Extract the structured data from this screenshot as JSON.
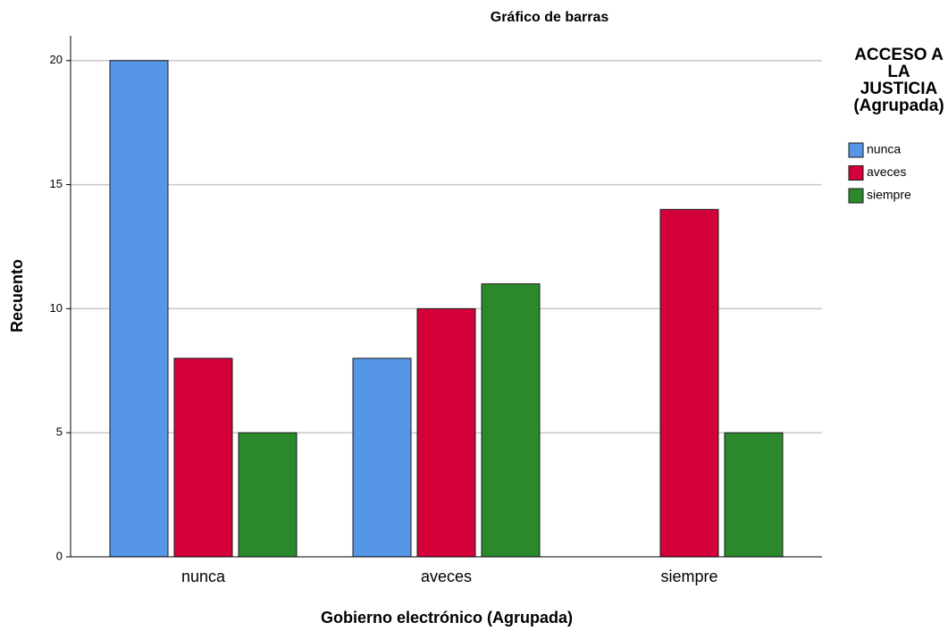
{
  "chart_data": {
    "type": "bar",
    "title": "Gráfico de barras",
    "x_label": "Gobierno electrónico (Agrupada)",
    "y_label": "Recuento",
    "legend_title": "ACCESO A LA JUSTICIA (Agrupada)",
    "legend_position": "right",
    "categories": [
      "nunca",
      "aveces",
      "siempre"
    ],
    "series": [
      {
        "name": "nunca",
        "color": "#5596e6",
        "values": [
          20,
          8,
          null
        ]
      },
      {
        "name": "aveces",
        "color": "#d3003a",
        "values": [
          8,
          10,
          14
        ]
      },
      {
        "name": "siempre",
        "color": "#2a892a",
        "values": [
          5,
          11,
          5
        ]
      }
    ],
    "ylim": [
      0,
      21
    ],
    "yticks": [
      0,
      5,
      10,
      15,
      20
    ],
    "grid": true
  }
}
